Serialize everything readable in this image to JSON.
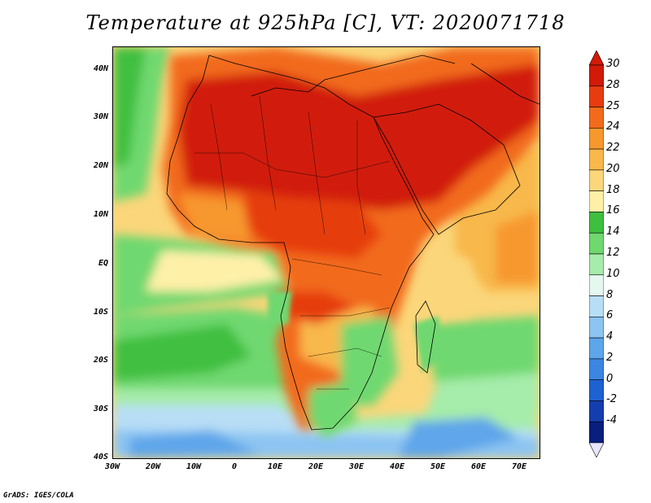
{
  "title": "Temperature at 925hPa [C], VT: 2020071718",
  "credit": "GrADS: IGES/COLA",
  "map": {
    "projection": "latlon",
    "lon_range": [
      -30,
      75
    ],
    "lat_range": [
      -40,
      45
    ],
    "lat_ticks": [
      "40N",
      "30N",
      "20N",
      "10N",
      "EQ",
      "10S",
      "20S",
      "30S",
      "40S"
    ],
    "lon_ticks": [
      "30W",
      "20W",
      "10W",
      "0",
      "10E",
      "20E",
      "30E",
      "40E",
      "50E",
      "60E",
      "70E"
    ],
    "land_outline_color": "#000000"
  },
  "colorbar": {
    "labels": [
      "30",
      "28",
      "25",
      "24",
      "22",
      "20",
      "18",
      "16",
      "14",
      "12",
      "10",
      "8",
      "6",
      "4",
      "2",
      "0",
      "-2",
      "-4"
    ],
    "colors": [
      "#d11a08",
      "#e63c10",
      "#f26a1c",
      "#f7982e",
      "#f8b84c",
      "#fbd67a",
      "#fff0a8",
      "#3fbf3f",
      "#6fd86f",
      "#a6ecaa",
      "#e4f8ef",
      "#b8def6",
      "#8cc4f2",
      "#5ea6ea",
      "#3c86e2",
      "#1e62d2",
      "#143eae",
      "#0a1e7e"
    ],
    "under_color": "#e6e6ff"
  }
}
